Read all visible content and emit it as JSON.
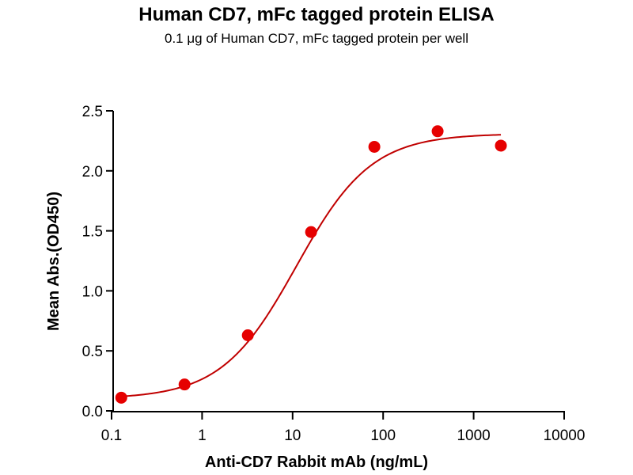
{
  "chart_data": {
    "type": "scatter",
    "title": "Human CD7, mFc tagged protein ELISA",
    "subtitle": "0.1 μg of Human CD7, mFc tagged protein per well",
    "xlabel": "Anti-CD7 Rabbit mAb (ng/mL)",
    "ylabel": "Mean Abs.(OD450)",
    "xscale": "log",
    "xlim": [
      0.1,
      10000
    ],
    "ylim": [
      0,
      2.5
    ],
    "xticks": [
      0.1,
      1,
      10,
      100,
      1000,
      10000
    ],
    "xtick_labels": [
      "0.1",
      "1",
      "10",
      "100",
      "1000",
      "10000"
    ],
    "yticks": [
      0,
      0.5,
      1.0,
      1.5,
      2.0,
      2.5
    ],
    "ytick_labels": [
      "0.0",
      "0.5",
      "1.0",
      "1.5",
      "2.0",
      "2.5"
    ],
    "grid": false,
    "legend": "none",
    "series": [
      {
        "name": "Human CD7, mFc",
        "color": "#e60000",
        "x": [
          0.128,
          0.64,
          3.2,
          16,
          80,
          400,
          2000
        ],
        "y": [
          0.11,
          0.22,
          0.63,
          1.49,
          2.2,
          2.33,
          2.21
        ]
      }
    ],
    "fit": {
      "model": "4PL",
      "color": "#c00000",
      "bottom": 0.1,
      "top": 2.31,
      "ec50": 11,
      "hill": 1.05
    }
  }
}
